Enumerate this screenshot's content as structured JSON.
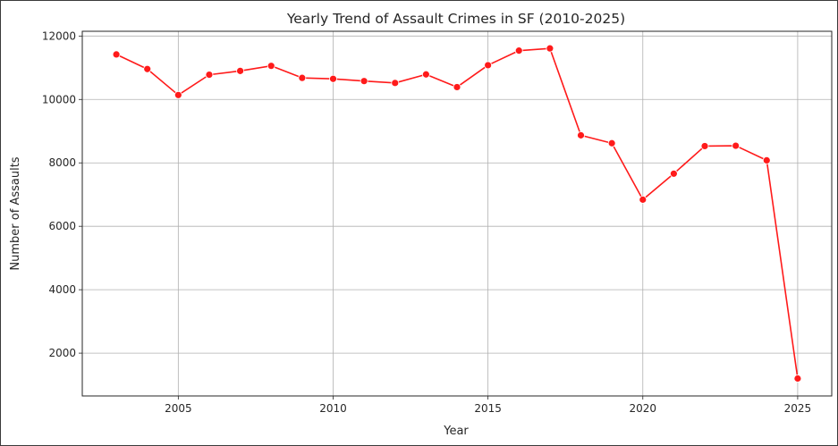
{
  "chart_data": {
    "type": "line",
    "title": "Yearly Trend of Assault Crimes in SF (2010-2025)",
    "xlabel": "Year",
    "ylabel": "Number of Assaults",
    "xlim": [
      2001.9,
      2026.1
    ],
    "ylim": [
      650,
      12150
    ],
    "x_ticks": [
      2005,
      2010,
      2015,
      2020,
      2025
    ],
    "x_tick_labels": [
      "2005",
      "2010",
      "2015",
      "2020",
      "2025"
    ],
    "y_ticks": [
      2000,
      4000,
      6000,
      8000,
      10000,
      12000
    ],
    "y_tick_labels": [
      "2000",
      "4000",
      "6000",
      "8000",
      "10000",
      "12000"
    ],
    "grid": true,
    "line_color": "#ff1a1a",
    "marker_color": "#ff1a1a",
    "series": [
      {
        "x": [
          2003,
          2004,
          2005,
          2006,
          2007,
          2008,
          2009,
          2010,
          2011,
          2012,
          2013,
          2014,
          2015,
          2016,
          2017,
          2018,
          2019,
          2020,
          2021,
          2022,
          2023,
          2024,
          2025
        ],
        "values": [
          11420,
          10960,
          10140,
          10780,
          10900,
          11060,
          10680,
          10650,
          10580,
          10520,
          10790,
          10390,
          11080,
          11540,
          11610,
          8870,
          8620,
          6840,
          7660,
          8530,
          8540,
          8080,
          1200
        ]
      }
    ]
  }
}
